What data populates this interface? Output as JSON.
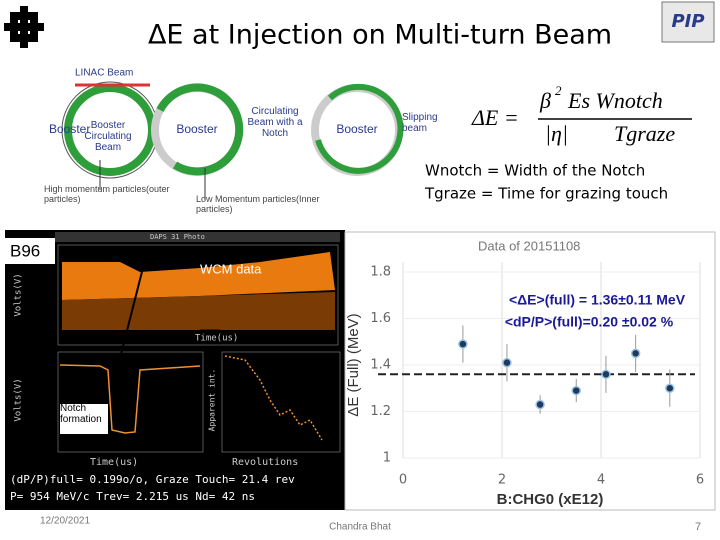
{
  "title": "ΔE at Injection on Multi-turn Beam",
  "logo": "PIP",
  "diagram": {
    "linac": "LINAC Beam",
    "ring1": "Booster",
    "ring1_sub": "Booster Circulating Beam",
    "ring2": "Booster",
    "ring2_label": "Circulating Beam with a Notch",
    "ring3": "Booster",
    "ring3_label": "Slipping beam",
    "high": "High momentum particles(outer particles)",
    "low": "Low Momentum particles(Inner particles)"
  },
  "formula": {
    "lhs": "ΔE =",
    "beta": "β",
    "exp": "2",
    "num": "Es Wnotch",
    "eta": "|η|",
    "den": "Tgraze"
  },
  "definitions": [
    "Wnotch = Width of the Notch",
    "Tgraze = Time for grazing touch"
  ],
  "scope": {
    "tag": "B96",
    "wcm": "WCM data",
    "notch": "Notch formation",
    "window": "DAPS 31 Photo",
    "volts": "Volts(V)",
    "time": "Time(us)",
    "revolutions": "Revolutions",
    "apparent": "Apparent int.",
    "line1": "(dP/P)full= 0.199o/o, Graze Touch= 21.4 rev",
    "line2": "P= 954 MeV/c  Trev= 2.215 us  Nd= 42 ns"
  },
  "chart_data": {
    "type": "scatter",
    "title": "Data of 20151108",
    "xlabel": "B:CHG0 (xE12)",
    "ylabel": "ΔE (Full) (MeV)",
    "x": [
      1.21,
      2.1,
      2.77,
      3.5,
      4.1,
      4.7,
      5.39
    ],
    "values": [
      1.49,
      1.41,
      1.23,
      1.29,
      1.36,
      1.45,
      1.3
    ],
    "errors": [
      0.08,
      0.08,
      0.04,
      0.05,
      0.08,
      0.08,
      0.08
    ],
    "color": "#1f3b5c",
    "xlim": [
      0,
      6
    ],
    "ylim": [
      1,
      1.8
    ],
    "xticks": [
      0,
      2,
      4,
      6
    ],
    "yticks": [
      1,
      1.2,
      1.4,
      1.6,
      1.8
    ],
    "grid": true,
    "reference_line": 1.36,
    "annotations": [
      "<ΔE>(full) = 1.36±0.11 MeV",
      "<dP/P>(full)=0.20 ±0.02 %"
    ]
  },
  "footer": {
    "date": "12/20/2021",
    "author": "Chandra Bhat",
    "page": "7"
  }
}
